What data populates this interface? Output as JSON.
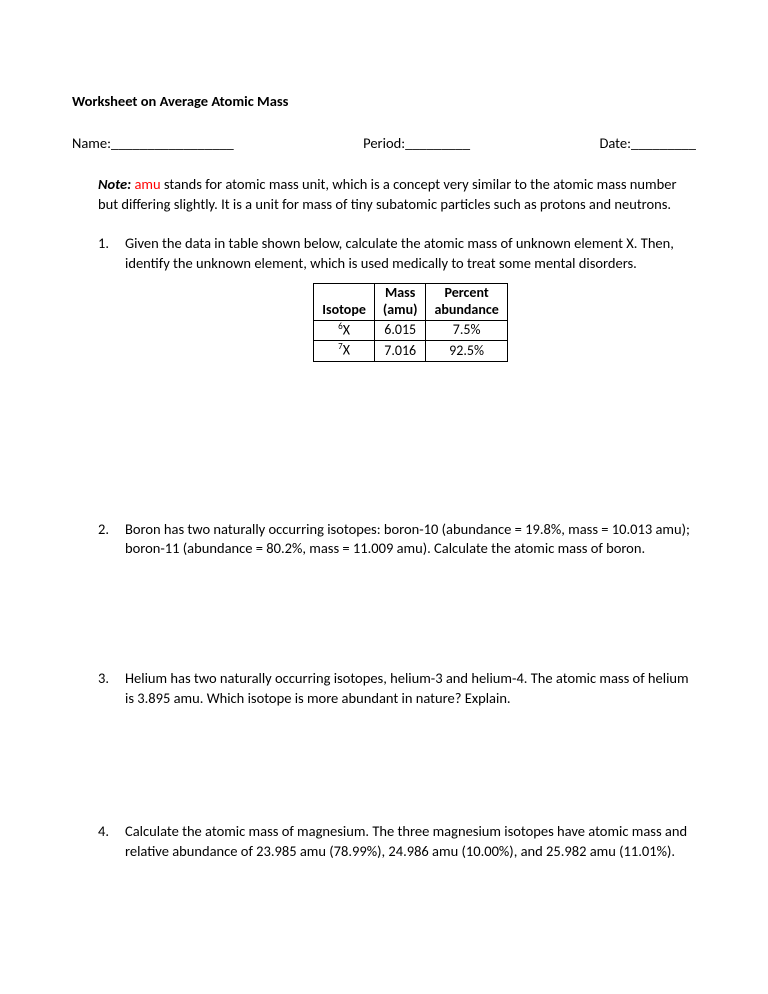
{
  "title": "Worksheet on Average Atomic Mass",
  "header": {
    "name_label": "Name:_________________",
    "period_label": "Period:_________",
    "date_label": "Date:_________"
  },
  "note": {
    "prefix": "Note:",
    "amu": "amu",
    "text": " stands for atomic mass unit, which is a concept very similar to the atomic mass number but differing slightly.  It is a unit for mass of tiny subatomic particles such as protons and neutrons."
  },
  "q1": {
    "num": "1.",
    "text": "Given the data in table shown below, calculate the atomic mass of unknown element X.  Then, identify the unknown element, which is used medically to treat some mental disorders.",
    "table": {
      "headers": {
        "c1": "Isotope",
        "c2a": "Mass",
        "c2b": "(amu)",
        "c3a": "Percent",
        "c3b": "abundance"
      },
      "rows": [
        {
          "iso_sup": "6",
          "iso_x": "X",
          "mass": "6.015",
          "abund": "7.5%"
        },
        {
          "iso_sup": "7",
          "iso_x": "X",
          "mass": "7.016",
          "abund": "92.5%"
        }
      ]
    }
  },
  "q2": {
    "num": "2.",
    "text": "Boron has two naturally occurring isotopes: boron-10 (abundance = 19.8%, mass = 10.013 amu); boron-11 (abundance = 80.2%, mass = 11.009 amu).  Calculate the atomic mass of boron."
  },
  "q3": {
    "num": "3.",
    "text": "Helium has two naturally occurring isotopes, helium-3 and helium-4.  The atomic mass of helium is 3.895 amu.  Which isotope is more abundant in nature?  Explain."
  },
  "q4": {
    "num": "4.",
    "text": "Calculate the atomic mass of magnesium.  The three magnesium isotopes have atomic mass and relative abundance of 23.985 amu (78.99%), 24.986 amu (10.00%), and 25.982 amu (11.01%)."
  }
}
